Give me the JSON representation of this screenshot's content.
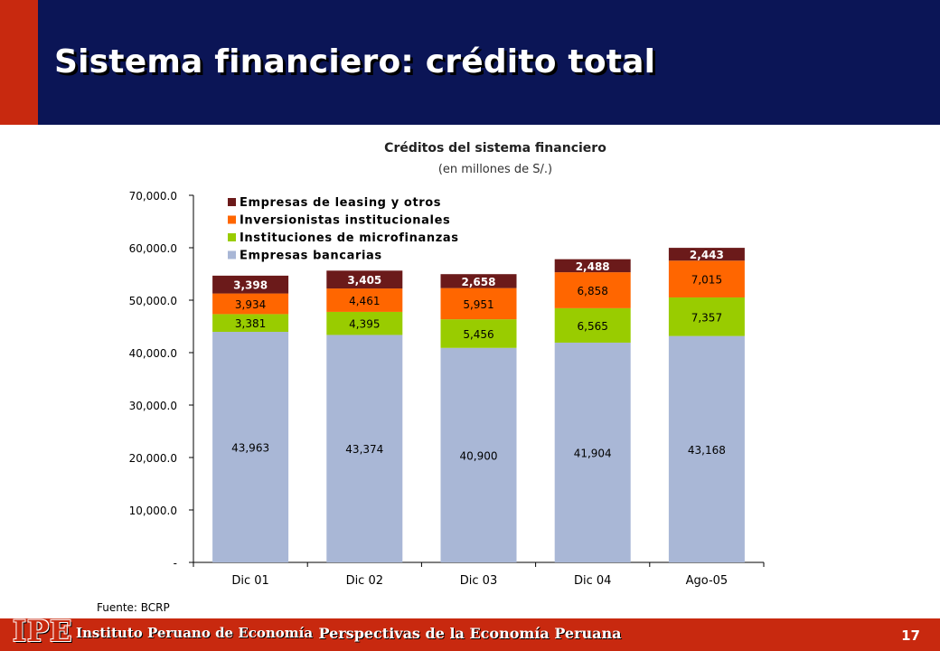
{
  "slide": {
    "title": "Sistema financiero: crédito total",
    "page_number": "17"
  },
  "footer": {
    "logo_text": "IPE",
    "institution": "Instituto Peruano de Economía",
    "center_text": "Perspectivas de la Economía Peruana"
  },
  "chart_data": {
    "type": "bar",
    "stacked": true,
    "title": "Créditos del sistema financiero",
    "subtitle": "(en millones de S/.)",
    "source": "Fuente: BCRP",
    "categories": [
      "Dic 01",
      "Dic 02",
      "Dic 03",
      "Dic 04",
      "Ago-05"
    ],
    "ylim": [
      0,
      70000
    ],
    "yticks": [
      0,
      10000,
      20000,
      30000,
      40000,
      50000,
      60000,
      70000
    ],
    "ytick_labels": [
      "-",
      "10,000.0",
      "20,000.0",
      "30,000.0",
      "40,000.0",
      "50,000.0",
      "60,000.0",
      "70,000.0"
    ],
    "legend_position": "top-left",
    "series": [
      {
        "name": "Empresas bancarias",
        "color": "#a9b7d6",
        "values": [
          43963,
          43374,
          40900,
          41904,
          43168
        ],
        "labels": [
          "43,963",
          "43,374",
          "40,900",
          "41,904",
          "43,168"
        ]
      },
      {
        "name": "Instituciones de microfinanzas",
        "color": "#99cc00",
        "values": [
          3381,
          4395,
          5456,
          6565,
          7357
        ],
        "labels": [
          "3,381",
          "4,395",
          "5,456",
          "6,565",
          "7,357"
        ]
      },
      {
        "name": "Inversionistas institucionales",
        "color": "#ff6600",
        "values": [
          3934,
          4461,
          5951,
          6858,
          7015
        ],
        "labels": [
          "3,934",
          "4,461",
          "5,951",
          "6,858",
          "7,015"
        ]
      },
      {
        "name": "Empresas de leasing y otros",
        "color": "#6b1a1a",
        "values": [
          3398,
          3405,
          2658,
          2488,
          2443
        ],
        "labels": [
          "3,398",
          "3,405",
          "2,658",
          "2,488",
          "2,443"
        ]
      }
    ],
    "legend_order": [
      "Empresas de leasing y otros",
      "Inversionistas institucionales",
      "Instituciones de microfinanzas",
      "Empresas bancarias"
    ]
  }
}
